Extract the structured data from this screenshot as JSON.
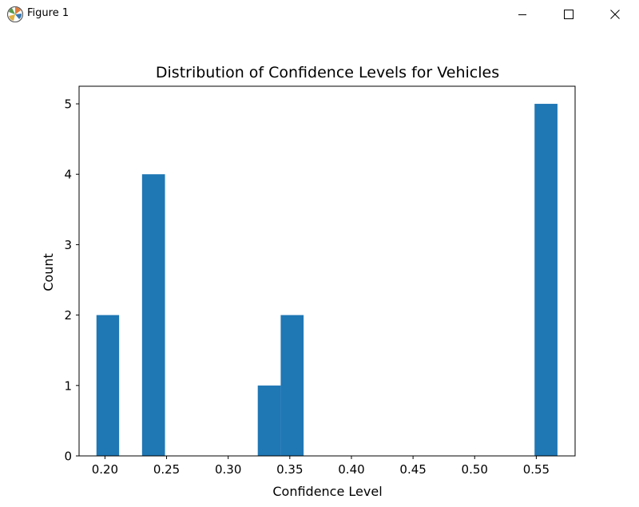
{
  "window": {
    "title": "Figure 1",
    "icon": "matplotlib-icon",
    "controls": [
      "minimize-icon",
      "maximize-icon",
      "close-icon"
    ]
  },
  "colors": {
    "bar": "#1f77b4",
    "axes": "#000000",
    "background": "#ffffff"
  },
  "chart_data": {
    "type": "bar",
    "title": "Distribution of Confidence Levels for Vehicles",
    "xlabel": "Confidence Level",
    "ylabel": "Count",
    "xlim": [
      0.179,
      0.5815
    ],
    "ylim": [
      0,
      5.25
    ],
    "xticks": [
      "0.20",
      "0.25",
      "0.30",
      "0.35",
      "0.40",
      "0.45",
      "0.50",
      "0.55"
    ],
    "yticks": [
      "0",
      "1",
      "2",
      "3",
      "4",
      "5"
    ],
    "grid": false,
    "bins": [
      {
        "x0": 0.1931,
        "x1": 0.2115,
        "count": 2
      },
      {
        "x0": 0.2301,
        "x1": 0.2487,
        "count": 4
      },
      {
        "x0": 0.324,
        "x1": 0.3426,
        "count": 1
      },
      {
        "x0": 0.3426,
        "x1": 0.3612,
        "count": 2
      },
      {
        "x0": 0.5486,
        "x1": 0.5672,
        "count": 5
      }
    ]
  }
}
